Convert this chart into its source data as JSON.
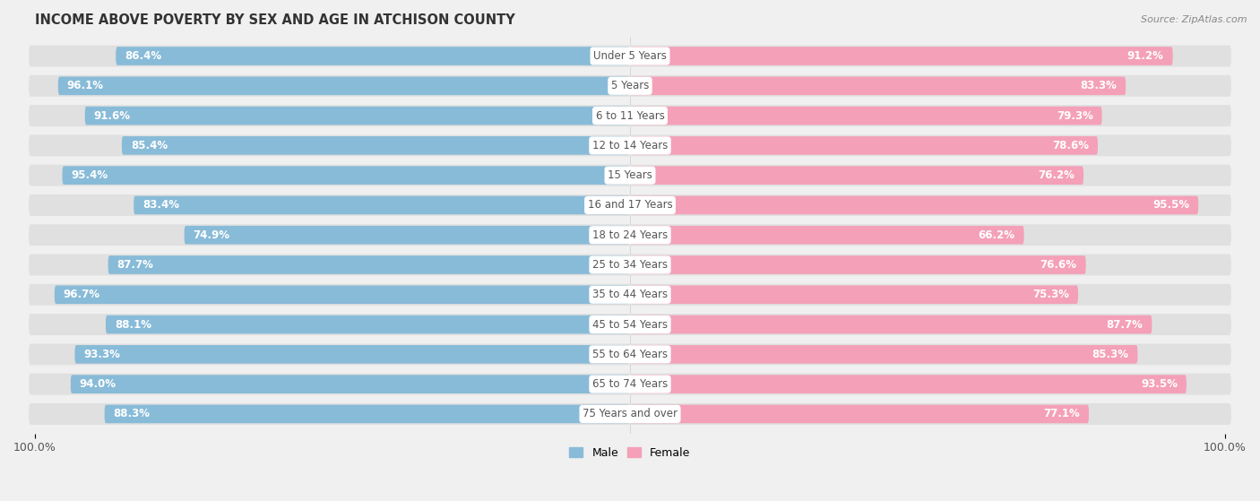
{
  "title": "INCOME ABOVE POVERTY BY SEX AND AGE IN ATCHISON COUNTY",
  "source": "Source: ZipAtlas.com",
  "categories": [
    "Under 5 Years",
    "5 Years",
    "6 to 11 Years",
    "12 to 14 Years",
    "15 Years",
    "16 and 17 Years",
    "18 to 24 Years",
    "25 to 34 Years",
    "35 to 44 Years",
    "45 to 54 Years",
    "55 to 64 Years",
    "65 to 74 Years",
    "75 Years and over"
  ],
  "male_values": [
    86.4,
    96.1,
    91.6,
    85.4,
    95.4,
    83.4,
    74.9,
    87.7,
    96.7,
    88.1,
    93.3,
    94.0,
    88.3
  ],
  "female_values": [
    91.2,
    83.3,
    79.3,
    78.6,
    76.2,
    95.5,
    66.2,
    76.6,
    75.3,
    87.7,
    85.3,
    93.5,
    77.1
  ],
  "male_color": "#88bbd8",
  "female_color": "#f4a0b8",
  "male_label": "Male",
  "female_label": "Female",
  "axis_max": 100.0,
  "bg_color": "#f0f0f0",
  "bar_bg_color": "#e8e8e8",
  "row_bg_color": "#e4e4e4",
  "title_fontsize": 10.5,
  "label_fontsize": 8.5,
  "value_fontsize": 8.5,
  "bar_height": 0.62
}
